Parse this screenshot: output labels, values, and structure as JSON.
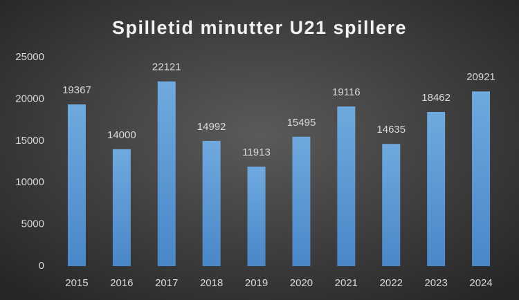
{
  "chart_data": {
    "type": "bar",
    "title": "Spilletid minutter U21 spillere",
    "categories": [
      "2015",
      "2016",
      "2017",
      "2018",
      "2019",
      "2020",
      "2021",
      "2022",
      "2023",
      "2024"
    ],
    "values": [
      19367,
      14000,
      22121,
      14992,
      11913,
      15495,
      19116,
      14635,
      18462,
      20921
    ],
    "color": "#5b9bd5",
    "ylim": [
      0,
      25000
    ],
    "yticks": [
      0,
      5000,
      10000,
      15000,
      20000,
      25000
    ],
    "grid": false,
    "data_labels": true
  }
}
